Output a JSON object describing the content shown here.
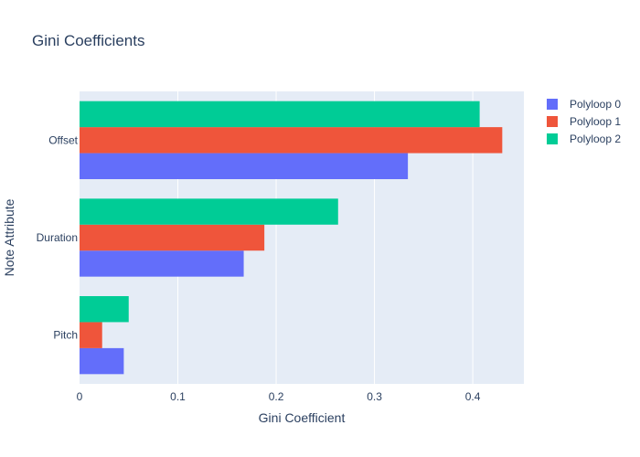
{
  "chart_data": {
    "type": "bar",
    "orientation": "horizontal",
    "title": "Gini Coefficients",
    "xlabel": "Gini Coefficient",
    "ylabel": "Note Attribute",
    "categories": [
      "Pitch",
      "Duration",
      "Offset"
    ],
    "xlim": [
      0,
      0.452
    ],
    "xticks": [
      0,
      0.1,
      0.2,
      0.3,
      0.4
    ],
    "xtick_labels": [
      "0",
      "0.1",
      "0.2",
      "0.3",
      "0.4"
    ],
    "grid": true,
    "legend_position": "top-right",
    "series": [
      {
        "name": "Polyloop 0",
        "color": "#636efa",
        "values": [
          0.045,
          0.167,
          0.334
        ]
      },
      {
        "name": "Polyloop 1",
        "color": "#ef553b",
        "values": [
          0.023,
          0.188,
          0.43
        ]
      },
      {
        "name": "Polyloop 2",
        "color": "#00cc96",
        "values": [
          0.05,
          0.263,
          0.407
        ]
      }
    ]
  },
  "style": {
    "plot_background": "#e5ecf6",
    "gridline_color": "#ffffff",
    "text_color": "#2a3f5f"
  }
}
